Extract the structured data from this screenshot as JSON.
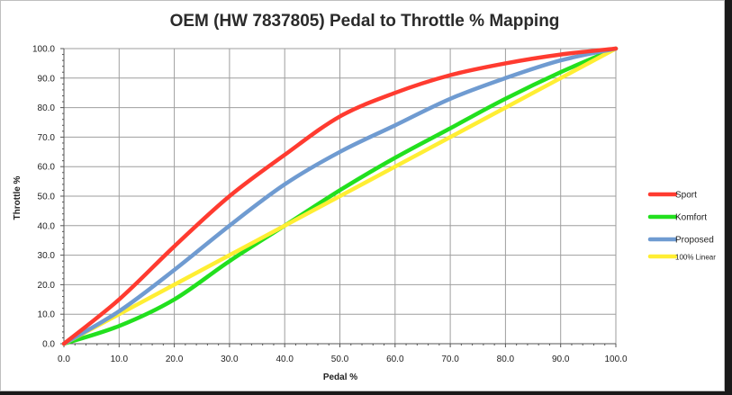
{
  "chart_data": {
    "type": "line",
    "title": "OEM (HW 7837805) Pedal to Throttle % Mapping",
    "xlabel": "Pedal %",
    "ylabel": "Throttle %",
    "xlim": [
      0,
      100
    ],
    "ylim": [
      0,
      100
    ],
    "x_ticks": [
      "0.0",
      "10.0",
      "20.0",
      "30.0",
      "40.0",
      "50.0",
      "60.0",
      "70.0",
      "80.0",
      "90.0",
      "100.0"
    ],
    "y_ticks": [
      "0.0",
      "10.0",
      "20.0",
      "30.0",
      "40.0",
      "50.0",
      "60.0",
      "70.0",
      "80.0",
      "90.0",
      "100.0"
    ],
    "grid": true,
    "legend_position": "right",
    "x": [
      0,
      10,
      20,
      30,
      40,
      50,
      60,
      70,
      80,
      90,
      100
    ],
    "series": [
      {
        "name": "Sport",
        "color": "#ff3b30",
        "values": [
          0,
          15,
          33,
          50,
          64,
          77,
          85,
          91,
          95,
          98,
          100
        ]
      },
      {
        "name": "Komfort",
        "color": "#22e01e",
        "values": [
          0,
          6,
          15,
          28,
          40,
          52,
          63,
          73,
          83,
          92,
          100
        ]
      },
      {
        "name": "Proposed",
        "color": "#6f9bd1",
        "values": [
          0,
          11,
          25,
          40,
          54,
          65,
          74,
          83,
          90,
          96,
          100
        ]
      },
      {
        "name": "100% Linear",
        "color": "#ffee33",
        "values": [
          0,
          10,
          20,
          30,
          40,
          50,
          60,
          70,
          80,
          90,
          100
        ]
      }
    ]
  }
}
